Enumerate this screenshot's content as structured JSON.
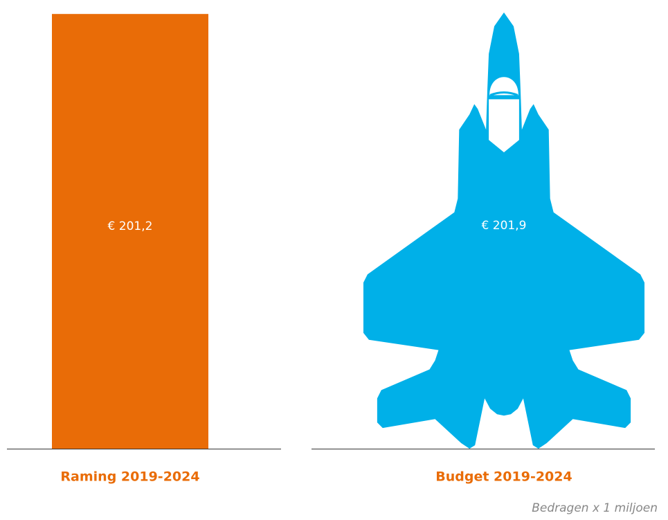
{
  "chart_data": {
    "type": "pictograph-bar",
    "categories": [
      "Raming 2019-2024",
      "Budget 2019-2024"
    ],
    "values": [
      201.2,
      201.9
    ],
    "value_labels": [
      "€ 201,2",
      "€ 201,9"
    ],
    "colors": [
      "#e96c07",
      "#00b0e8"
    ],
    "shapes": [
      "bar",
      "jet"
    ],
    "note": "Bedragen x 1 miljoen"
  }
}
